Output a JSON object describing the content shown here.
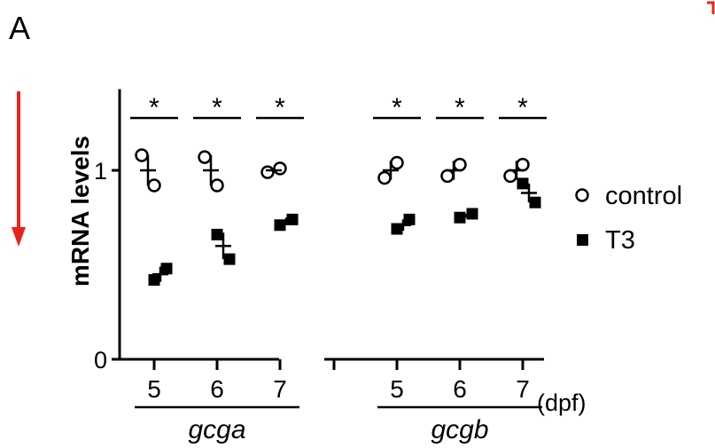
{
  "panel_label": "A",
  "chart_data": {
    "type": "scatter",
    "ylabel": "mRNA levels",
    "ylim": [
      0,
      1.5
    ],
    "yticks": [
      0,
      1
    ],
    "x_unit": "(dpf)",
    "gene_groups": [
      {
        "name": "gcga",
        "days": [
          "5",
          "6",
          "7"
        ]
      },
      {
        "name": "gcgb",
        "days": [
          "5",
          "6",
          "7"
        ]
      }
    ],
    "series": [
      {
        "name": "control",
        "marker": "open-circle",
        "points": [
          {
            "gene": "gcga",
            "day": "5",
            "values": [
              1.08,
              0.92
            ],
            "mean": 1.0,
            "sem": 0.08
          },
          {
            "gene": "gcga",
            "day": "6",
            "values": [
              1.07,
              0.92
            ],
            "mean": 1.0,
            "sem": 0.08
          },
          {
            "gene": "gcga",
            "day": "7",
            "values": [
              0.99,
              1.01
            ],
            "mean": 1.0,
            "sem": 0.01
          },
          {
            "gene": "gcgb",
            "day": "5",
            "values": [
              0.96,
              1.04
            ],
            "mean": 1.0,
            "sem": 0.05
          },
          {
            "gene": "gcgb",
            "day": "6",
            "values": [
              0.97,
              1.03
            ],
            "mean": 1.0,
            "sem": 0.05
          },
          {
            "gene": "gcgb",
            "day": "7",
            "values": [
              0.97,
              1.03
            ],
            "mean": 1.0,
            "sem": 0.05
          }
        ]
      },
      {
        "name": "T3",
        "marker": "filled-square",
        "points": [
          {
            "gene": "gcga",
            "day": "5",
            "values": [
              0.42,
              0.48
            ],
            "mean": 0.45,
            "sem": 0.04
          },
          {
            "gene": "gcga",
            "day": "6",
            "values": [
              0.66,
              0.53
            ],
            "mean": 0.6,
            "sem": 0.07
          },
          {
            "gene": "gcga",
            "day": "7",
            "values": [
              0.71,
              0.74
            ],
            "mean": 0.73,
            "sem": 0.02
          },
          {
            "gene": "gcgb",
            "day": "5",
            "values": [
              0.69,
              0.74
            ],
            "mean": 0.71,
            "sem": 0.03
          },
          {
            "gene": "gcgb",
            "day": "6",
            "values": [
              0.75,
              0.77
            ],
            "mean": 0.76,
            "sem": 0.01
          },
          {
            "gene": "gcgb",
            "day": "7",
            "values": [
              0.93,
              0.83
            ],
            "mean": 0.88,
            "sem": 0.05
          }
        ]
      }
    ],
    "significance": [
      "*",
      "*",
      "*",
      "*",
      "*",
      "*"
    ],
    "legend": [
      {
        "label": "control",
        "marker": "open-circle"
      },
      {
        "label": "T3",
        "marker": "filled-square"
      }
    ],
    "legend_position": "right",
    "grid": false
  },
  "annotations": {
    "arrow_color": "#e8231b",
    "arrow_direction": "down",
    "bracket_color": "#e8231b"
  }
}
